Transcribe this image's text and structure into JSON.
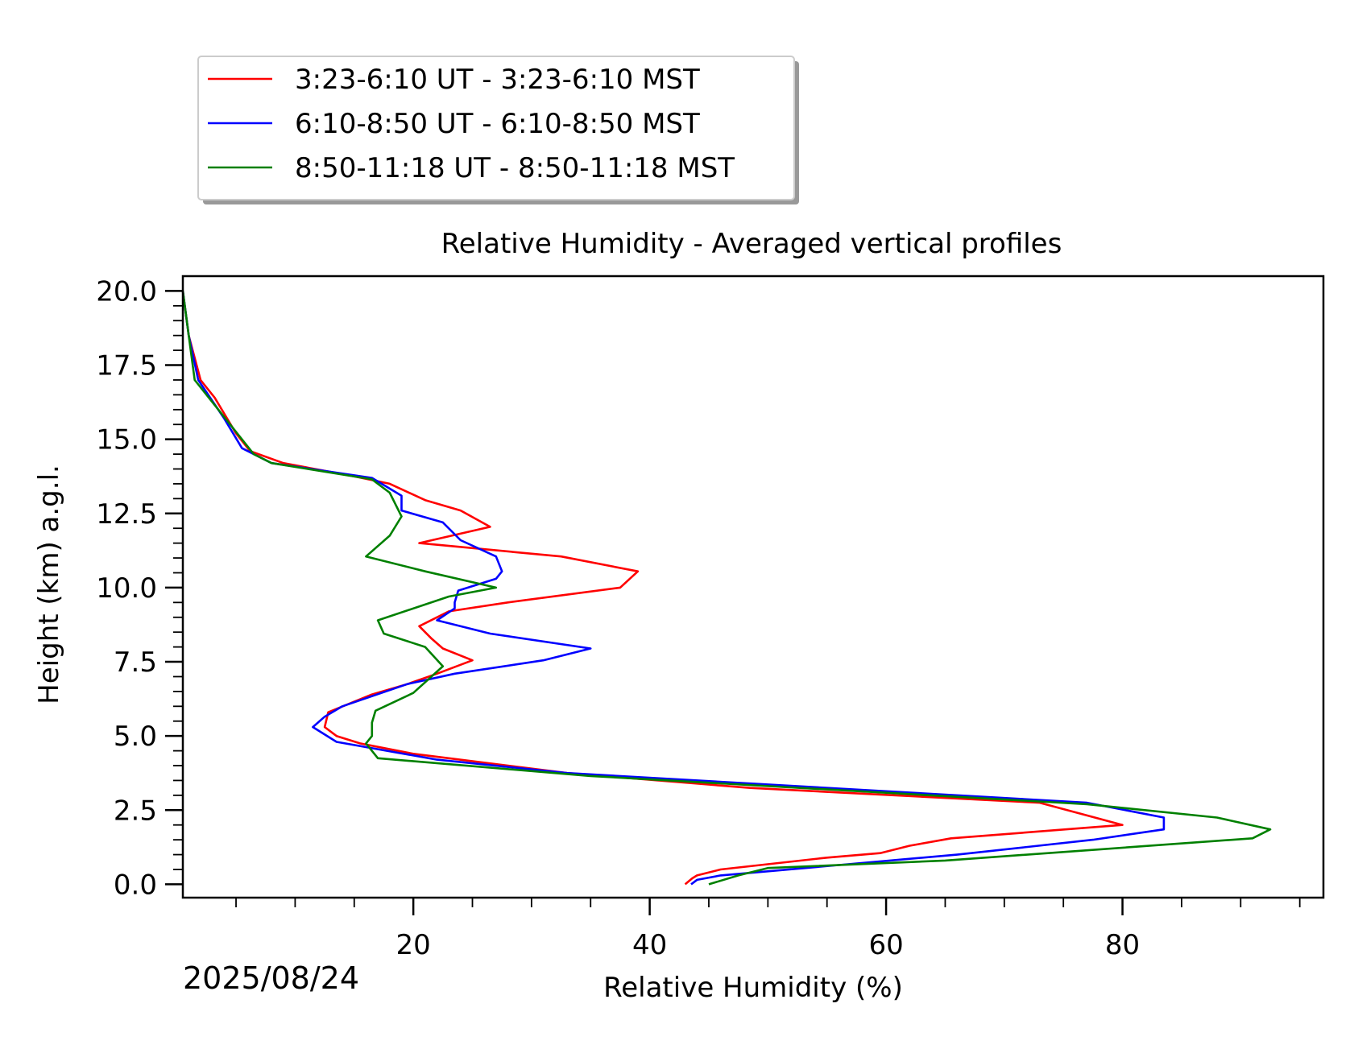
{
  "chart_data": {
    "type": "line",
    "title": "Relative Humidity - Averaged vertical profiles",
    "xlabel": "Relative Humidity (%)",
    "ylabel": "Height (km) a.g.l.",
    "date_label": "2025/08/24",
    "xlim": [
      0.5,
      97
    ],
    "ylim": [
      -0.45,
      20.5
    ],
    "x_ticks": [
      20,
      40,
      60,
      80
    ],
    "y_ticks": [
      0.0,
      2.5,
      5.0,
      7.5,
      10.0,
      12.5,
      15.0,
      17.5,
      20.0
    ],
    "x_tick_labels": [
      "20",
      "40",
      "60",
      "80"
    ],
    "y_tick_labels": [
      "0.0",
      "2.5",
      "5.0",
      "7.5",
      "10.0",
      "12.5",
      "15.0",
      "17.5",
      "20.0"
    ],
    "grid": false,
    "legend_position": "above-left, outside plot",
    "series": [
      {
        "name": "3:23-6:10 UT - 3:23-6:10 MST",
        "color": "#ff0000",
        "points": [
          [
            43.0,
            0.0
          ],
          [
            43.6,
            0.2
          ],
          [
            44.0,
            0.3
          ],
          [
            46.0,
            0.5
          ],
          [
            55.0,
            0.9
          ],
          [
            59.5,
            1.05
          ],
          [
            62.0,
            1.3
          ],
          [
            65.5,
            1.55
          ],
          [
            80.0,
            2.0
          ],
          [
            73.0,
            2.75
          ],
          [
            48.5,
            3.25
          ],
          [
            33.0,
            3.75
          ],
          [
            20.0,
            4.4
          ],
          [
            15.5,
            4.75
          ],
          [
            13.5,
            5.0
          ],
          [
            12.5,
            5.3
          ],
          [
            12.8,
            5.8
          ],
          [
            16.5,
            6.4
          ],
          [
            19.5,
            6.75
          ],
          [
            22.0,
            7.1
          ],
          [
            25.0,
            7.55
          ],
          [
            22.5,
            7.95
          ],
          [
            21.5,
            8.3
          ],
          [
            20.5,
            8.7
          ],
          [
            23.0,
            9.2
          ],
          [
            28.0,
            9.5
          ],
          [
            37.5,
            10.0
          ],
          [
            39.0,
            10.55
          ],
          [
            32.5,
            11.05
          ],
          [
            20.5,
            11.5
          ],
          [
            26.5,
            12.05
          ],
          [
            24.0,
            12.6
          ],
          [
            21.0,
            12.95
          ],
          [
            18.0,
            13.5
          ],
          [
            15.0,
            13.75
          ],
          [
            9.0,
            14.2
          ],
          [
            6.2,
            14.6
          ],
          [
            5.0,
            15.2
          ],
          [
            3.2,
            16.4
          ],
          [
            2.0,
            17.0
          ],
          [
            1.0,
            18.5
          ],
          [
            0.5,
            20.0
          ]
        ]
      },
      {
        "name": "6:10-8:50 UT - 6:10-8:50 MST",
        "color": "#0000ff",
        "points": [
          [
            43.5,
            0.0
          ],
          [
            44.0,
            0.15
          ],
          [
            46.0,
            0.3
          ],
          [
            56.0,
            0.65
          ],
          [
            66.0,
            1.0
          ],
          [
            77.5,
            1.5
          ],
          [
            83.5,
            1.85
          ],
          [
            83.5,
            2.25
          ],
          [
            77.0,
            2.75
          ],
          [
            33.0,
            3.75
          ],
          [
            22.0,
            4.2
          ],
          [
            13.5,
            4.8
          ],
          [
            11.5,
            5.3
          ],
          [
            12.5,
            5.65
          ],
          [
            14.0,
            6.0
          ],
          [
            19.5,
            6.75
          ],
          [
            23.5,
            7.1
          ],
          [
            31.0,
            7.55
          ],
          [
            35.0,
            7.95
          ],
          [
            26.5,
            8.45
          ],
          [
            22.0,
            8.9
          ],
          [
            23.5,
            9.3
          ],
          [
            23.5,
            9.5
          ],
          [
            23.8,
            9.9
          ],
          [
            27.0,
            10.3
          ],
          [
            27.5,
            10.55
          ],
          [
            27.0,
            11.05
          ],
          [
            24.0,
            11.6
          ],
          [
            22.5,
            12.2
          ],
          [
            19.0,
            12.6
          ],
          [
            19.0,
            13.1
          ],
          [
            16.5,
            13.7
          ],
          [
            8.0,
            14.2
          ],
          [
            5.5,
            14.7
          ],
          [
            4.0,
            15.7
          ],
          [
            1.8,
            17.0
          ],
          [
            1.0,
            18.5
          ],
          [
            0.5,
            20.0
          ]
        ]
      },
      {
        "name": "8:50-11:18 UT - 8:50-11:18 MST",
        "color": "#008000",
        "points": [
          [
            45.0,
            0.0
          ],
          [
            47.5,
            0.3
          ],
          [
            50.0,
            0.55
          ],
          [
            65.0,
            0.8
          ],
          [
            91.0,
            1.55
          ],
          [
            92.5,
            1.85
          ],
          [
            88.0,
            2.25
          ],
          [
            77.0,
            2.7
          ],
          [
            35.0,
            3.65
          ],
          [
            17.0,
            4.25
          ],
          [
            16.0,
            4.75
          ],
          [
            16.5,
            5.0
          ],
          [
            16.5,
            5.45
          ],
          [
            16.8,
            5.85
          ],
          [
            20.0,
            6.45
          ],
          [
            22.5,
            7.35
          ],
          [
            21.0,
            8.0
          ],
          [
            17.5,
            8.45
          ],
          [
            17.0,
            8.9
          ],
          [
            23.0,
            9.7
          ],
          [
            27.0,
            10.0
          ],
          [
            21.0,
            10.55
          ],
          [
            16.0,
            11.05
          ],
          [
            18.0,
            11.75
          ],
          [
            19.0,
            12.4
          ],
          [
            18.0,
            13.2
          ],
          [
            16.5,
            13.65
          ],
          [
            8.0,
            14.2
          ],
          [
            6.5,
            14.5
          ],
          [
            4.0,
            15.75
          ],
          [
            1.5,
            17.0
          ],
          [
            1.0,
            18.5
          ],
          [
            0.5,
            20.0
          ]
        ]
      }
    ]
  }
}
